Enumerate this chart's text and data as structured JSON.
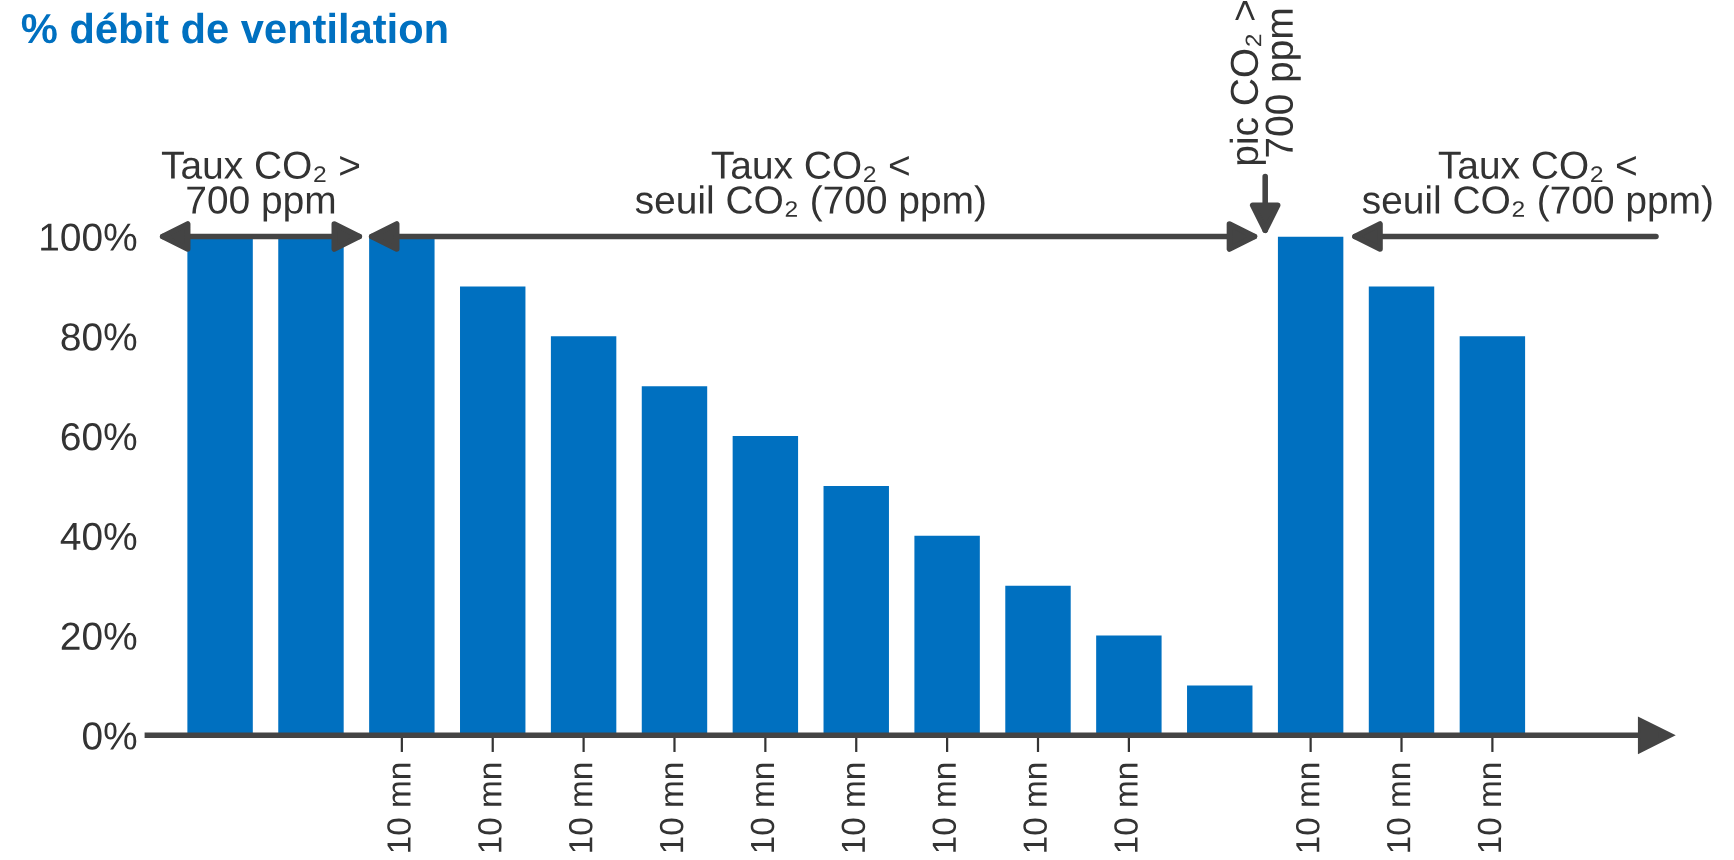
{
  "chart_data": {
    "type": "bar",
    "ylabel": "% débit de ventilation",
    "categories": [
      null,
      null,
      "10 mn",
      "10 mn",
      "10 mn",
      "10 mn",
      "10 mn",
      "10 mn",
      "10 mn",
      "10 mn",
      "10 mn",
      null,
      "10 mn",
      "10 mn",
      "10 mn"
    ],
    "values": [
      100,
      100,
      100,
      90,
      80,
      70,
      60,
      50,
      40,
      30,
      20,
      10,
      100,
      90,
      80
    ],
    "color": "#0070c0",
    "ylim": [
      0,
      100
    ],
    "yticks": [
      {
        "value": 0,
        "label": "0%"
      },
      {
        "value": 20,
        "label": "20%"
      },
      {
        "value": 40,
        "label": "40%"
      },
      {
        "value": 60,
        "label": "60%"
      },
      {
        "value": 80,
        "label": "80%"
      },
      {
        "value": 100,
        "label": "100%"
      }
    ],
    "annotations": [
      "Taux CO₂ >\n700 ppm",
      "Taux CO₂ <\nseuil CO₂ (700 ppm)",
      "pic CO₂ >\n700 ppm",
      "Taux CO₂ <\nseuil CO₂ (700 ppm)"
    ],
    "grid": false
  }
}
